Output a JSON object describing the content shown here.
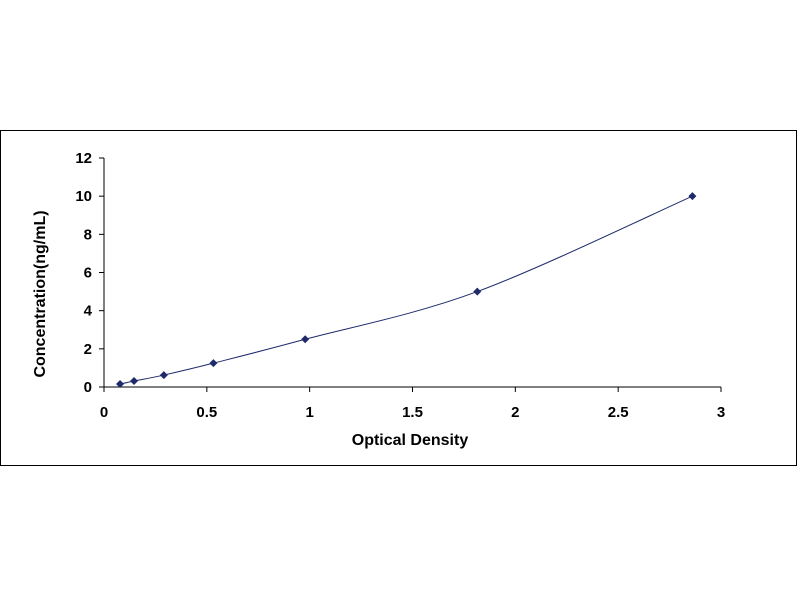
{
  "chart_data": {
    "type": "scatter",
    "title": "",
    "xlabel": "Optical Density",
    "ylabel": "Concentration(ng/mL)",
    "xlim": [
      0,
      3
    ],
    "ylim": [
      0,
      12
    ],
    "x_ticks": [
      "0",
      "0.5",
      "1",
      "1.5",
      "2",
      "2.5",
      "3"
    ],
    "y_ticks": [
      "0",
      "2",
      "4",
      "6",
      "8",
      "10",
      "12"
    ],
    "grid": false,
    "legend": "none",
    "series": [
      {
        "x": [
          0.078,
          0.146,
          0.291,
          0.532,
          0.978,
          1.815,
          2.861
        ],
        "y": [
          0.156,
          0.312,
          0.625,
          1.25,
          2.5,
          5,
          10
        ],
        "marker": "diamond",
        "trendline": "smooth"
      }
    ],
    "colors": {
      "marker": "#1f2a6b",
      "line": "#1f2a6b"
    }
  }
}
